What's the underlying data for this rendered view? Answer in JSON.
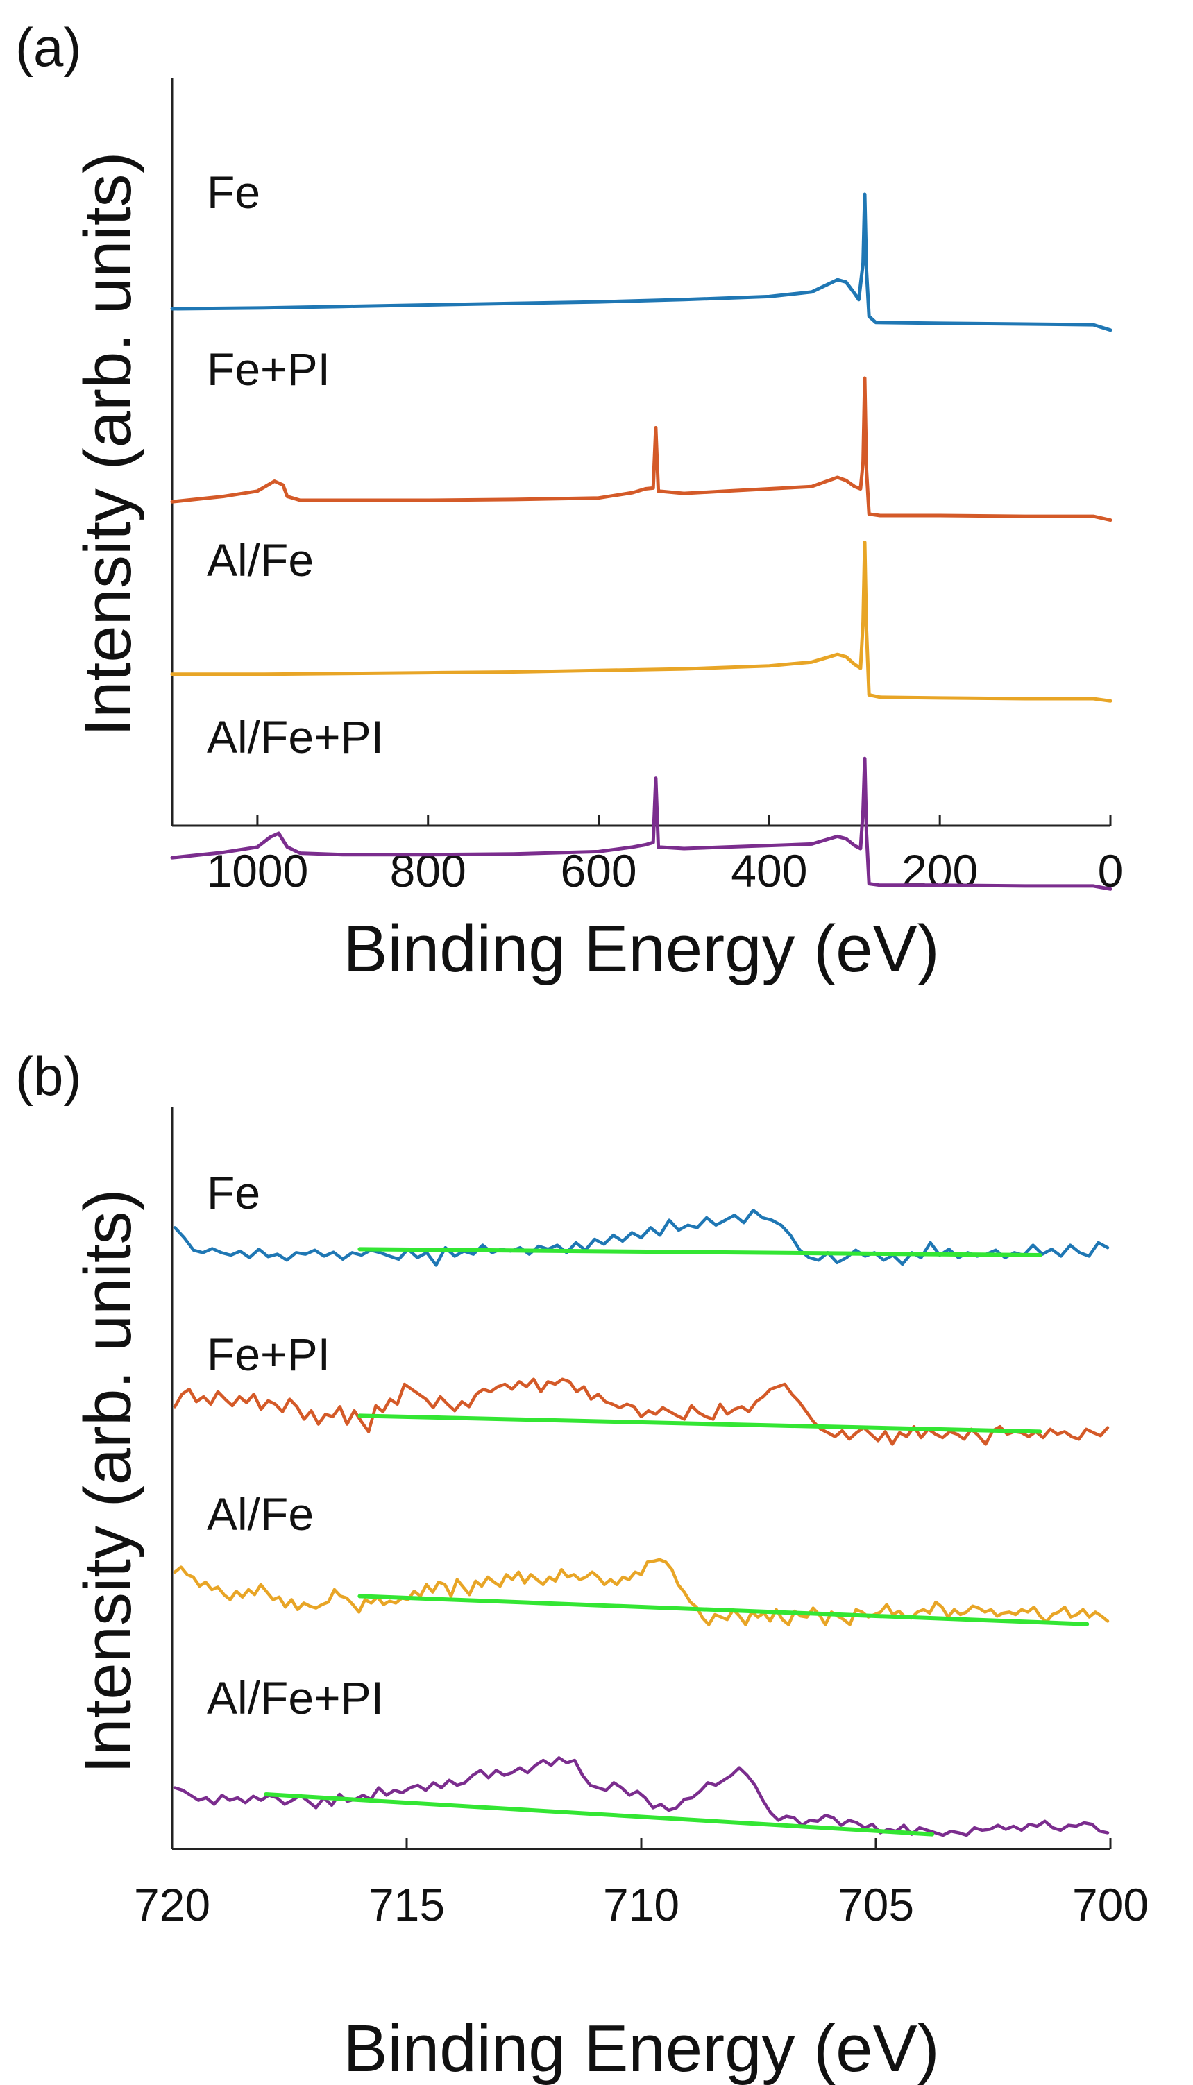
{
  "chart_data": [
    {
      "panel": "(a)",
      "type": "line",
      "xlabel": "Binding Energy (eV)",
      "ylabel": "Intensity (arb. units)",
      "xlim": [
        1100,
        0
      ],
      "x_reversed": true,
      "xticks": [
        1000,
        800,
        600,
        400,
        200,
        0
      ],
      "yticks": "none",
      "series": [
        {
          "name": "Fe",
          "color": "#1f77b4",
          "points": [
            [
              1100,
              0.5
            ],
            [
              1000,
              0.51
            ],
            [
              900,
              0.53
            ],
            [
              800,
              0.55
            ],
            [
              700,
              0.57
            ],
            [
              600,
              0.59
            ],
            [
              500,
              0.62
            ],
            [
              400,
              0.66
            ],
            [
              350,
              0.72
            ],
            [
              320,
              0.88
            ],
            [
              310,
              0.85
            ],
            [
              300,
              0.7
            ],
            [
              295,
              0.62
            ],
            [
              290,
              1.1
            ],
            [
              288,
              2.0
            ],
            [
              286,
              1.0
            ],
            [
              283,
              0.4
            ],
            [
              275,
              0.32
            ],
            [
              200,
              0.31
            ],
            [
              100,
              0.3
            ],
            [
              20,
              0.29
            ],
            [
              0,
              0.22
            ]
          ]
        },
        {
          "name": "Fe+PI",
          "color": "#d45a28",
          "points": [
            [
              1100,
              0.38
            ],
            [
              1040,
              0.45
            ],
            [
              1000,
              0.52
            ],
            [
              980,
              0.65
            ],
            [
              970,
              0.6
            ],
            [
              965,
              0.45
            ],
            [
              950,
              0.4
            ],
            [
              900,
              0.4
            ],
            [
              800,
              0.4
            ],
            [
              700,
              0.41
            ],
            [
              600,
              0.43
            ],
            [
              560,
              0.5
            ],
            [
              545,
              0.55
            ],
            [
              536,
              0.56
            ],
            [
              533,
              1.35
            ],
            [
              530,
              0.52
            ],
            [
              500,
              0.49
            ],
            [
              450,
              0.52
            ],
            [
              400,
              0.55
            ],
            [
              350,
              0.58
            ],
            [
              320,
              0.7
            ],
            [
              310,
              0.66
            ],
            [
              300,
              0.58
            ],
            [
              293,
              0.55
            ],
            [
              290,
              0.9
            ],
            [
              288,
              2.0
            ],
            [
              286,
              0.8
            ],
            [
              283,
              0.22
            ],
            [
              270,
              0.2
            ],
            [
              200,
              0.2
            ],
            [
              100,
              0.19
            ],
            [
              20,
              0.19
            ],
            [
              0,
              0.14
            ]
          ]
        },
        {
          "name": "Al/Fe",
          "color": "#e8a526",
          "points": [
            [
              1100,
              0.62
            ],
            [
              1000,
              0.62
            ],
            [
              900,
              0.63
            ],
            [
              800,
              0.64
            ],
            [
              700,
              0.65
            ],
            [
              600,
              0.67
            ],
            [
              500,
              0.69
            ],
            [
              400,
              0.73
            ],
            [
              350,
              0.78
            ],
            [
              320,
              0.88
            ],
            [
              310,
              0.85
            ],
            [
              300,
              0.75
            ],
            [
              293,
              0.7
            ],
            [
              290,
              1.3
            ],
            [
              288,
              2.35
            ],
            [
              286,
              1.2
            ],
            [
              283,
              0.35
            ],
            [
              270,
              0.32
            ],
            [
              200,
              0.31
            ],
            [
              100,
              0.3
            ],
            [
              20,
              0.3
            ],
            [
              0,
              0.27
            ]
          ]
        },
        {
          "name": "Al/Fe+PI",
          "color": "#7b2d8e",
          "points": [
            [
              1100,
              0.58
            ],
            [
              1040,
              0.65
            ],
            [
              1000,
              0.72
            ],
            [
              985,
              0.85
            ],
            [
              975,
              0.9
            ],
            [
              965,
              0.72
            ],
            [
              950,
              0.64
            ],
            [
              900,
              0.62
            ],
            [
              800,
              0.62
            ],
            [
              700,
              0.63
            ],
            [
              600,
              0.66
            ],
            [
              560,
              0.72
            ],
            [
              545,
              0.75
            ],
            [
              536,
              0.78
            ],
            [
              533,
              1.62
            ],
            [
              530,
              0.72
            ],
            [
              500,
              0.7
            ],
            [
              450,
              0.72
            ],
            [
              400,
              0.74
            ],
            [
              350,
              0.76
            ],
            [
              320,
              0.86
            ],
            [
              310,
              0.83
            ],
            [
              300,
              0.74
            ],
            [
              293,
              0.7
            ],
            [
              290,
              1.2
            ],
            [
              288,
              1.88
            ],
            [
              286,
              0.9
            ],
            [
              283,
              0.24
            ],
            [
              270,
              0.22
            ],
            [
              200,
              0.22
            ],
            [
              100,
              0.21
            ],
            [
              20,
              0.21
            ],
            [
              0,
              0.17
            ]
          ]
        }
      ]
    },
    {
      "panel": "(b)",
      "type": "line",
      "xlabel": "Binding Energy (eV)",
      "ylabel": "Intensity (arb. units)",
      "xlim": [
        720,
        700
      ],
      "x_reversed": true,
      "xticks": [
        720,
        715,
        710,
        705,
        700
      ],
      "yticks": "none",
      "series": [
        {
          "name": "Fe",
          "color": "#1f77b4",
          "values": [
            1.05,
            0.85,
            0.6,
            0.55,
            0.63,
            0.55,
            0.5,
            0.58,
            0.45,
            0.62,
            0.47,
            0.52,
            0.4,
            0.55,
            0.52,
            0.6,
            0.48,
            0.56,
            0.42,
            0.55,
            0.5,
            0.6,
            0.55,
            0.48,
            0.42,
            0.62,
            0.45,
            0.55,
            0.3,
            0.65,
            0.48,
            0.58,
            0.52,
            0.7,
            0.55,
            0.62,
            0.58,
            0.65,
            0.52,
            0.68,
            0.62,
            0.7,
            0.55,
            0.75,
            0.6,
            0.82,
            0.72,
            0.9,
            0.78,
            0.95,
            0.85,
            1.05,
            0.9,
            1.2,
            1.0,
            1.1,
            1.05,
            1.25,
            1.1,
            1.2,
            1.3,
            1.15,
            1.4,
            1.25,
            1.2,
            1.1,
            0.9,
            0.6,
            0.45,
            0.4,
            0.55,
            0.35,
            0.45,
            0.6,
            0.48,
            0.55,
            0.4,
            0.5,
            0.32,
            0.55,
            0.45,
            0.75,
            0.5,
            0.62,
            0.45,
            0.55,
            0.48,
            0.52,
            0.6,
            0.45,
            0.55,
            0.5,
            0.7,
            0.52,
            0.62,
            0.48,
            0.7,
            0.55,
            0.48,
            0.75,
            0.65
          ],
          "baseline": {
            "x_start": 716.0,
            "y_start": 0.62,
            "x_end": 701.5,
            "y_end": 0.5
          }
        },
        {
          "name": "Fe+PI",
          "color": "#d45a28",
          "values": [
            0.8,
            1.05,
            1.15,
            0.9,
            1.0,
            0.85,
            1.1,
            0.95,
            0.82,
            1.0,
            0.88,
            1.05,
            0.75,
            0.92,
            0.85,
            0.7,
            0.95,
            0.8,
            0.55,
            0.72,
            0.45,
            0.65,
            0.6,
            0.8,
            0.45,
            0.72,
            0.5,
            0.3,
            0.82,
            0.7,
            0.95,
            0.85,
            1.25,
            1.15,
            1.05,
            0.95,
            0.78,
            1.0,
            0.85,
            0.72,
            0.9,
            0.8,
            1.05,
            1.15,
            1.1,
            1.2,
            1.25,
            1.15,
            1.3,
            1.2,
            1.35,
            1.1,
            1.3,
            1.25,
            1.35,
            1.3,
            1.1,
            1.2,
            0.95,
            1.05,
            0.9,
            0.85,
            0.78,
            0.85,
            0.8,
            0.6,
            0.72,
            0.65,
            0.78,
            0.7,
            0.62,
            0.55,
            0.82,
            0.68,
            0.6,
            0.55,
            0.85,
            0.65,
            0.75,
            0.8,
            0.7,
            0.9,
            1.0,
            1.15,
            1.2,
            1.25,
            1.05,
            0.9,
            0.7,
            0.5,
            0.35,
            0.28,
            0.2,
            0.32,
            0.15,
            0.28,
            0.38,
            0.25,
            0.12,
            0.3,
            0.05,
            0.28,
            0.2,
            0.4,
            0.18,
            0.35,
            0.25,
            0.18,
            0.3,
            0.25,
            0.15,
            0.35,
            0.22,
            0.05,
            0.32,
            0.4,
            0.25,
            0.3,
            0.28,
            0.2,
            0.3,
            0.18,
            0.35,
            0.25,
            0.3,
            0.2,
            0.15,
            0.35,
            0.28,
            0.22,
            0.38
          ],
          "baseline": {
            "x_start": 716.0,
            "y_start": 0.62,
            "x_end": 701.5,
            "y_end": 0.3
          }
        },
        {
          "name": "Al/Fe",
          "color": "#e8a526",
          "values": [
            1.1,
            1.2,
            1.05,
            1.0,
            0.82,
            0.9,
            0.75,
            0.8,
            0.65,
            0.55,
            0.72,
            0.6,
            0.75,
            0.65,
            0.85,
            0.7,
            0.55,
            0.6,
            0.4,
            0.55,
            0.35,
            0.48,
            0.42,
            0.38,
            0.45,
            0.5,
            0.75,
            0.62,
            0.58,
            0.45,
            0.3,
            0.55,
            0.48,
            0.6,
            0.45,
            0.52,
            0.48,
            0.58,
            0.55,
            0.72,
            0.62,
            0.85,
            0.7,
            0.9,
            0.85,
            0.62,
            0.95,
            0.8,
            0.65,
            0.92,
            0.82,
            1.0,
            0.9,
            0.82,
            1.05,
            0.95,
            1.1,
            0.88,
            1.05,
            0.95,
            0.85,
            1.0,
            0.92,
            1.15,
            1.0,
            1.05,
            0.95,
            1.0,
            1.1,
            1.0,
            0.85,
            0.95,
            0.85,
            1.0,
            0.95,
            1.1,
            1.05,
            1.3,
            1.32,
            1.35,
            1.3,
            1.15,
            0.85,
            0.7,
            0.5,
            0.4,
            0.18,
            0.05,
            0.25,
            0.2,
            0.15,
            0.35,
            0.22,
            0.05,
            0.3,
            0.2,
            0.28,
            0.12,
            0.35,
            0.15,
            0.05,
            0.32,
            0.22,
            0.2,
            0.38,
            0.25,
            0.05,
            0.3,
            0.22,
            0.15,
            0.05,
            0.35,
            0.3,
            0.2,
            0.25,
            0.3,
            0.45,
            0.25,
            0.32,
            0.2,
            0.18,
            0.3,
            0.35,
            0.28,
            0.5,
            0.4,
            0.2,
            0.35,
            0.25,
            0.3,
            0.42,
            0.38,
            0.3,
            0.35,
            0.22,
            0.28,
            0.3,
            0.25,
            0.35,
            0.3,
            0.4,
            0.22,
            0.1,
            0.25,
            0.3,
            0.4,
            0.2,
            0.25,
            0.35,
            0.2,
            0.3,
            0.22,
            0.12
          ],
          "baseline": {
            "x_start": 716.0,
            "y_start": 0.62,
            "x_end": 700.5,
            "y_end": 0.06
          }
        },
        {
          "name": "Al/Fe+PI",
          "color": "#7b2d8e",
          "values": [
            0.95,
            0.9,
            0.8,
            0.7,
            0.75,
            0.62,
            0.8,
            0.7,
            0.75,
            0.65,
            0.78,
            0.7,
            0.8,
            0.75,
            0.62,
            0.7,
            0.8,
            0.68,
            0.55,
            0.75,
            0.6,
            0.82,
            0.68,
            0.72,
            0.8,
            0.72,
            0.95,
            0.8,
            0.9,
            0.85,
            0.95,
            1.0,
            0.9,
            1.05,
            0.95,
            1.1,
            1.0,
            1.05,
            1.2,
            1.3,
            1.15,
            1.3,
            1.2,
            1.25,
            1.35,
            1.25,
            1.4,
            1.5,
            1.4,
            1.55,
            1.45,
            1.5,
            1.2,
            1.0,
            0.95,
            0.9,
            1.05,
            0.95,
            0.8,
            0.88,
            0.75,
            0.55,
            0.62,
            0.5,
            0.55,
            0.72,
            0.75,
            0.88,
            1.05,
            1.0,
            1.1,
            1.2,
            1.35,
            1.2,
            1.0,
            0.7,
            0.45,
            0.3,
            0.38,
            0.35,
            0.2,
            0.3,
            0.28,
            0.4,
            0.35,
            0.2,
            0.3,
            0.25,
            0.15,
            0.22,
            0.05,
            0.12,
            0.08,
            0.2,
            0.02,
            0.15,
            0.1,
            0.05,
            0.0,
            0.08,
            0.05,
            0.0,
            0.15,
            0.1,
            0.12,
            0.2,
            0.12,
            0.18,
            0.1,
            0.22,
            0.18,
            0.28,
            0.15,
            0.1,
            0.2,
            0.18,
            0.25,
            0.22,
            0.08,
            0.05
          ],
          "baseline": {
            "x_start": 718.0,
            "y_start": 0.82,
            "x_end": 703.8,
            "y_end": 0.02
          }
        }
      ]
    }
  ],
  "baseline_color": "#33e633",
  "axes_color": "#222222"
}
